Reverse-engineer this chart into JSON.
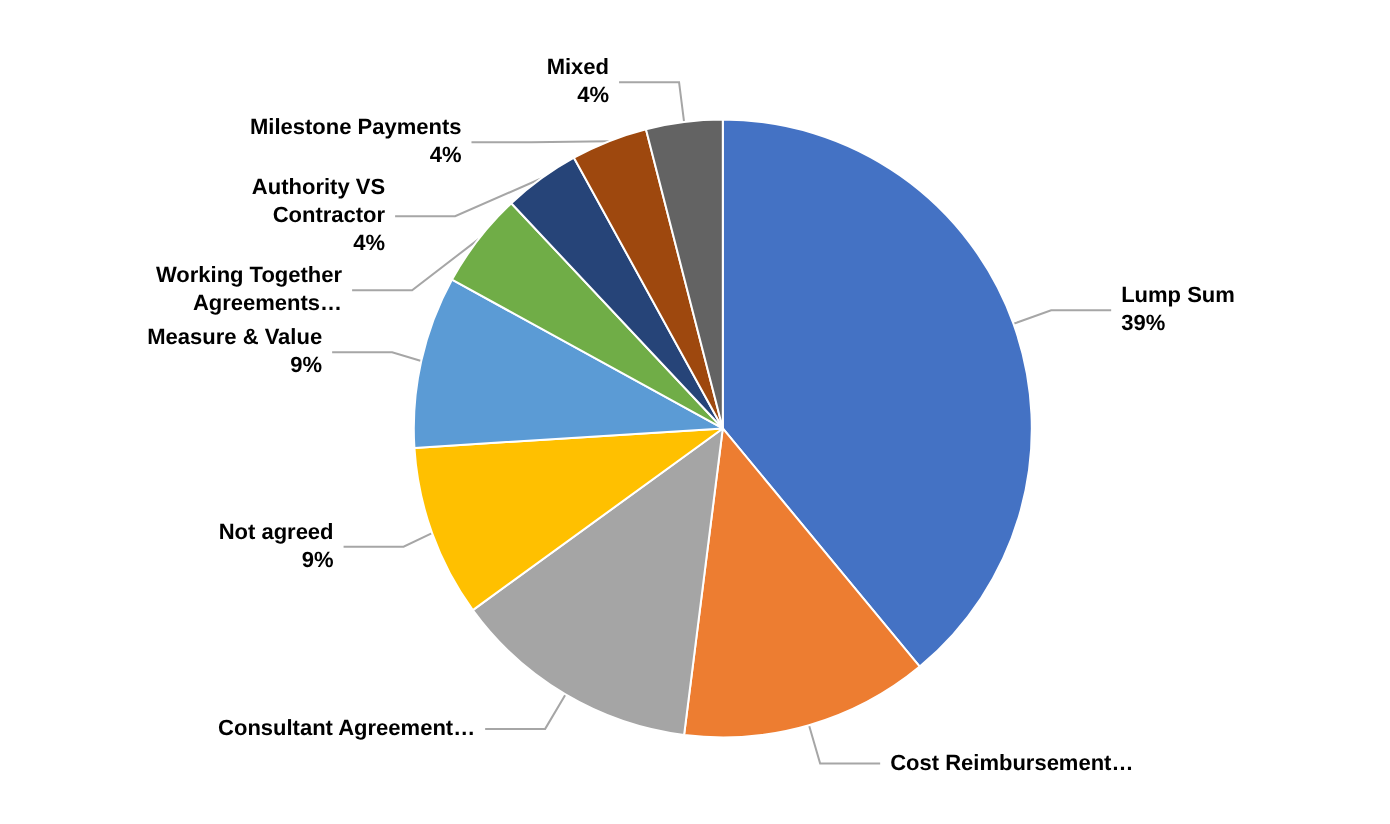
{
  "chart_data": {
    "type": "pie",
    "categories": [
      "Lump Sum",
      "Cost Reimbursement…",
      "Consultant Agreement…",
      "Not agreed",
      "Measure & Value",
      "Working Together Agreements…",
      "Authority VS Contractor",
      "Milestone Payments",
      "Mixed"
    ],
    "values": [
      39,
      13,
      13,
      9,
      9,
      5,
      4,
      4,
      4
    ],
    "colors": [
      "#4472c4",
      "#ed7d31",
      "#a5a5a5",
      "#ffc000",
      "#5b9bd5",
      "#70ad47",
      "#264478",
      "#9e480e",
      "#636363"
    ],
    "value_labels": [
      "39%",
      null,
      null,
      "9%",
      "9%",
      null,
      "4%",
      "4%",
      "4%"
    ],
    "legend": false
  }
}
